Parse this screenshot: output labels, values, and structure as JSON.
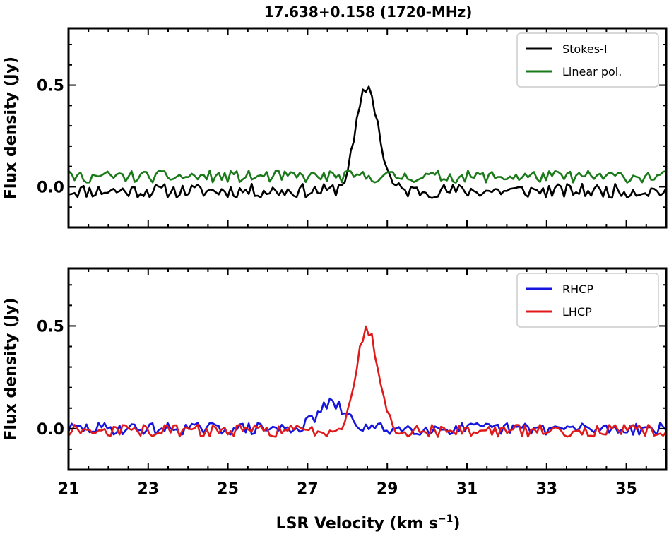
{
  "title": "17.638+0.158 (1720-MHz)",
  "xlabel_main": "LSR Velocity (km s",
  "xlabel_sup": "−1",
  "xlabel_close": ")",
  "chart_data": [
    {
      "type": "line",
      "ylabel": "Flux density (Jy)",
      "xlim": [
        21,
        36
      ],
      "ylim": [
        -0.2,
        0.78
      ],
      "yticks": [
        0.0,
        0.5
      ],
      "ytick_labels": [
        "0.0",
        "0.5"
      ],
      "xticks": [
        21,
        23,
        25,
        27,
        29,
        31,
        33,
        35
      ],
      "xtick_labels": [],
      "legend_position": "top-right",
      "series": [
        {
          "name": "Stokes-I",
          "color": "#000000",
          "noise": 0.035,
          "baseline": -0.02,
          "peak": {
            "center": 28.5,
            "amplitude": 0.51,
            "sigma": 0.28
          }
        },
        {
          "name": "Linear pol.",
          "color": "#1a7a1a",
          "noise": 0.03,
          "baseline": 0.05,
          "peak": null
        }
      ],
      "seed": 11
    },
    {
      "type": "line",
      "ylabel": "Flux density (Jy)",
      "xlim": [
        21,
        36
      ],
      "ylim": [
        -0.2,
        0.78
      ],
      "yticks": [
        0.0,
        0.5
      ],
      "ytick_labels": [
        "0.0",
        "0.5"
      ],
      "xticks": [
        21,
        23,
        25,
        27,
        29,
        31,
        33,
        35
      ],
      "xtick_labels": [
        "21",
        "23",
        "25",
        "27",
        "29",
        "31",
        "33",
        "35"
      ],
      "legend_position": "top-right",
      "series": [
        {
          "name": "RHCP",
          "color": "#1515dd",
          "noise": 0.03,
          "baseline": 0.0,
          "peak": {
            "center": 27.6,
            "amplitude": 0.12,
            "sigma": 0.35
          }
        },
        {
          "name": "LHCP",
          "color": "#e01a1a",
          "noise": 0.03,
          "baseline": -0.01,
          "peak": {
            "center": 28.5,
            "amplitude": 0.49,
            "sigma": 0.28
          }
        }
      ],
      "seed": 29
    }
  ]
}
